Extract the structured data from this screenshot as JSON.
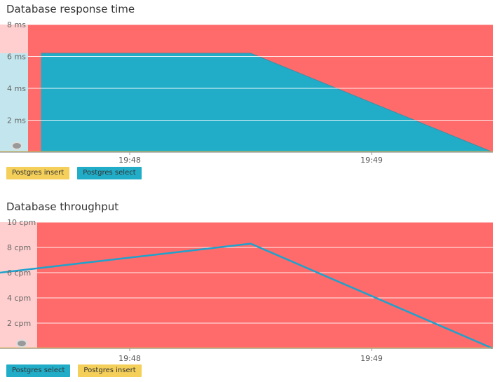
{
  "colors": {
    "background": "#ff6a6a",
    "sidebar": "#ffcfcf",
    "sidebar_cyan": "#c3e6ee",
    "select": "#21adc8",
    "select_line": "#1fa2cc",
    "insert": "#f4cf5a",
    "grid": "#ffffff",
    "axis_text": "#666666"
  },
  "chart_data": [
    {
      "type": "area",
      "title": "Database response time",
      "xlabel": "",
      "ylabel": "",
      "unit": "ms",
      "x_ticks": [
        "19:48",
        "19:49"
      ],
      "y_ticks": [
        2,
        4,
        6,
        8
      ],
      "y_tick_labels": [
        "2 ms",
        "4 ms",
        "6 ms",
        "8 ms"
      ],
      "ylim": [
        0,
        8
      ],
      "series": [
        {
          "name": "Postgres insert",
          "color": "#f4cf5a",
          "x": [
            "19:47:38",
            "19:48:30",
            "19:49:30"
          ],
          "values": [
            0,
            0,
            0
          ]
        },
        {
          "name": "Postgres select",
          "color": "#21adc8",
          "x": [
            "19:47:38",
            "19:48:30",
            "19:49:30"
          ],
          "values": [
            6.2,
            6.2,
            0
          ]
        }
      ],
      "legend": [
        "Postgres insert",
        "Postgres select"
      ],
      "legend_placement": "bottom-left",
      "grid": true
    },
    {
      "type": "line",
      "title": "Database throughput",
      "xlabel": "",
      "ylabel": "",
      "unit": "cpm",
      "x_ticks": [
        "19:48",
        "19:49"
      ],
      "y_ticks": [
        2,
        4,
        6,
        8,
        10
      ],
      "y_tick_labels": [
        "2 cpm",
        "4 cpm",
        "6 cpm",
        "8 cpm",
        "10 cpm"
      ],
      "ylim": [
        0,
        10
      ],
      "series": [
        {
          "name": "Postgres select",
          "color": "#1fa2cc",
          "x": [
            "19:47:38",
            "19:48:30",
            "19:49:30"
          ],
          "values": [
            6,
            8.3,
            0
          ]
        },
        {
          "name": "Postgres insert",
          "color": "#f4cf5a",
          "x": [
            "19:47:38",
            "19:48:30",
            "19:49:30"
          ],
          "values": [
            0,
            0,
            0
          ]
        }
      ],
      "legend": [
        "Postgres select",
        "Postgres insert"
      ],
      "legend_placement": "bottom-left",
      "grid": true
    }
  ]
}
